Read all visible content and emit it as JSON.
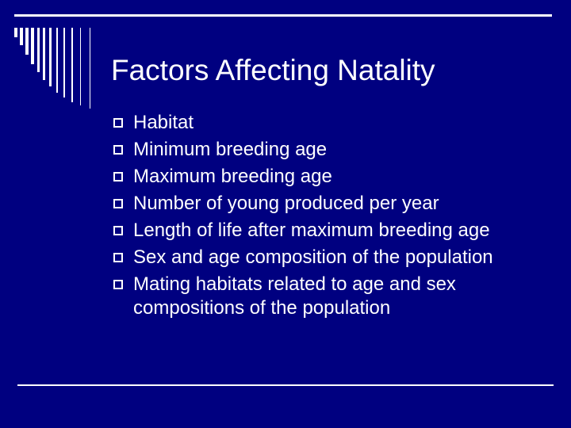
{
  "slide": {
    "title": "Factors Affecting Natality",
    "bullets": [
      "Habitat",
      "Minimum breeding age",
      "Maximum breeding age",
      "Number of young produced per year",
      "Length of life after maximum breeding age",
      "Sex and age composition of the population",
      "Mating habitats related to age and sex compositions of the population"
    ],
    "colors": {
      "background": "#000080",
      "foreground": "#ffffff"
    }
  }
}
